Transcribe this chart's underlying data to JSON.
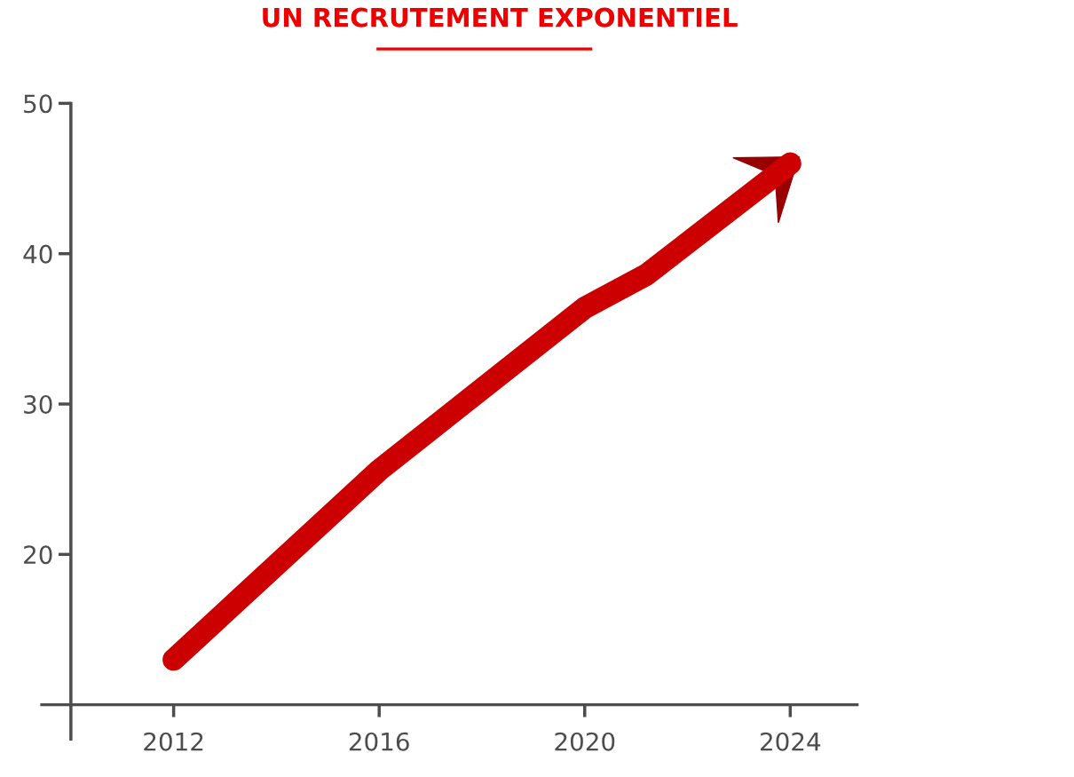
{
  "chart_data": {
    "type": "line",
    "title": "UN RECRUTEMENT EXPONENTIEL",
    "x": [
      2012,
      2016,
      2020,
      2021.2,
      2024
    ],
    "series": [
      {
        "color": "#cc0000",
        "values": [
          13,
          25.6,
          36.4,
          38.6,
          46
        ]
      }
    ],
    "xlim": [
      2010,
      2025.3
    ],
    "xticks": [
      2012,
      2016,
      2020,
      2024
    ],
    "ylim": [
      10,
      50
    ],
    "yticks": [
      20,
      30,
      40,
      50
    ],
    "grid": false,
    "legend": false,
    "line_style": "solid"
  }
}
